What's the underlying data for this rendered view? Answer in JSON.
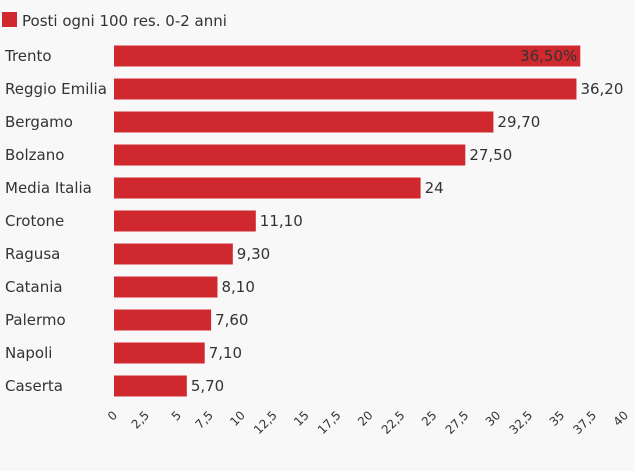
{
  "chart_data": {
    "type": "bar",
    "orientation": "horizontal",
    "categories": [
      "Trento",
      "Reggio Emilia",
      "Bergamo",
      "Bolzano",
      "Media Italia",
      "Crotone",
      "Ragusa",
      "Catania",
      "Palermo",
      "Napoli",
      "Caserta"
    ],
    "series": [
      {
        "name": "Posti ogni 100 res. 0-2 anni",
        "values": [
          36.5,
          36.2,
          29.7,
          27.5,
          24,
          11.1,
          9.3,
          8.1,
          7.6,
          7.1,
          5.7
        ],
        "value_labels": [
          "36,50%",
          "36,20",
          "29,70",
          "27,50",
          "24",
          "11,10",
          "9,30",
          "8,10",
          "7,60",
          "7,10",
          "5,70"
        ],
        "color": "#d0282f"
      }
    ],
    "xlim": [
      0,
      40
    ],
    "xticks": [
      0,
      2.5,
      5,
      7.5,
      10,
      12.5,
      15,
      17.5,
      20,
      22.5,
      25,
      27.5,
      30,
      32.5,
      35,
      37.5,
      40
    ],
    "xtick_labels": [
      "0",
      "2,5",
      "5",
      "7,5",
      "10",
      "12,5",
      "15",
      "17,5",
      "20",
      "22,5",
      "25",
      "27,5",
      "30",
      "32,5",
      "35",
      "37,5",
      "40"
    ],
    "legend": "top-left",
    "grid": false
  }
}
